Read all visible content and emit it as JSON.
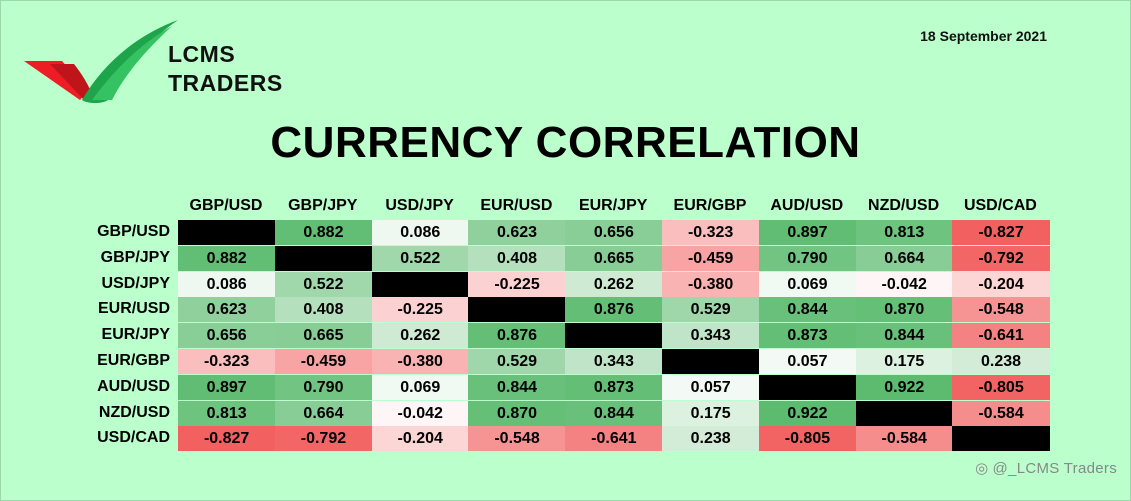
{
  "brand": {
    "line1": "LCMS",
    "line2": "TRADERS",
    "green": "#1ea44a",
    "red": "#ee1c24"
  },
  "date": "18 September 2021",
  "title": "CURRENCY CORRELATION",
  "watermark": {
    "text": "@_LCMS Traders",
    "icon": "weibo-icon"
  },
  "colors": {
    "positive": "#5cbb6f",
    "negative": "#f26060",
    "neutral": "#ffffff",
    "diagonal": "#000000"
  },
  "chart_data": {
    "type": "heatmap",
    "title": "CURRENCY CORRELATION",
    "rows": [
      "GBP/USD",
      "GBP/JPY",
      "USD/JPY",
      "EUR/USD",
      "EUR/JPY",
      "EUR/GBP",
      "AUD/USD",
      "NZD/USD",
      "USD/CAD"
    ],
    "columns": [
      "GBP/USD",
      "GBP/JPY",
      "USD/JPY",
      "EUR/USD",
      "EUR/JPY",
      "EUR/GBP",
      "AUD/USD",
      "NZD/USD",
      "USD/CAD"
    ],
    "values": [
      [
        null,
        "0.882",
        "0.086",
        "0.623",
        "0.656",
        "-0.323",
        "0.897",
        "0.813",
        "-0.827"
      ],
      [
        "0.882",
        null,
        "0.522",
        "0.408",
        "0.665",
        "-0.459",
        "0.790",
        "0.664",
        "-0.792"
      ],
      [
        "0.086",
        "0.522",
        null,
        "-0.225",
        "0.262",
        "-0.380",
        "0.069",
        "-0.042",
        "-0.204"
      ],
      [
        "0.623",
        "0.408",
        "-0.225",
        null,
        "0.876",
        "0.529",
        "0.844",
        "0.870",
        "-0.548"
      ],
      [
        "0.656",
        "0.665",
        "0.262",
        "0.876",
        null,
        "0.343",
        "0.873",
        "0.844",
        "-0.641"
      ],
      [
        "-0.323",
        "-0.459",
        "-0.380",
        "0.529",
        "0.343",
        null,
        "0.057",
        "0.175",
        "0.238"
      ],
      [
        "0.897",
        "0.790",
        "0.069",
        "0.844",
        "0.873",
        "0.057",
        null,
        "0.922",
        "-0.805"
      ],
      [
        "0.813",
        "0.664",
        "-0.042",
        "0.870",
        "0.844",
        "0.175",
        "0.922",
        null,
        "-0.584"
      ],
      [
        "-0.827",
        "-0.792",
        "-0.204",
        "-0.548",
        "-0.641",
        "0.238",
        "-0.805",
        "-0.584",
        null
      ]
    ],
    "range": [
      -1,
      1
    ],
    "diagonal": "black"
  }
}
